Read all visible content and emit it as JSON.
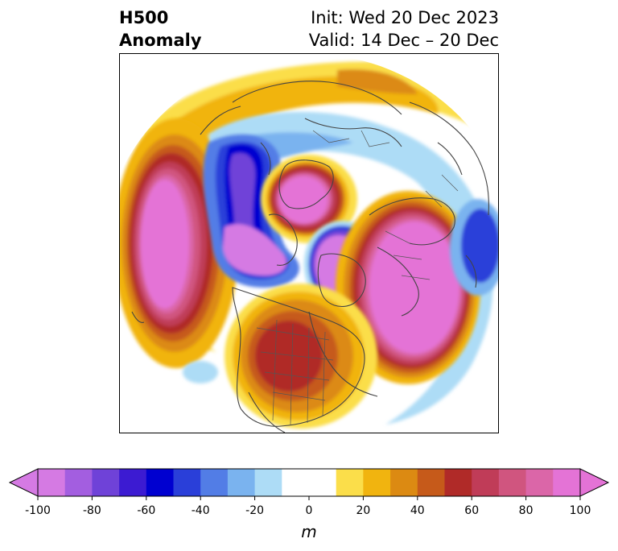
{
  "title": {
    "left_line1": "H500",
    "left_line2": "Anomaly",
    "right_line1": "Init: Wed 20 Dec 2023",
    "right_line2": "Valid: 14 Dec – 20 Dec"
  },
  "map": {
    "projection": "north-polar-stereographic",
    "field": "500 hPa geopotential height anomaly",
    "features": [
      {
        "name": "positive-anomaly-north-pacific",
        "sign": "positive",
        "peak_m": 100
      },
      {
        "name": "positive-anomaly-north-atlantic-europe",
        "sign": "positive",
        "peak_m": 100
      },
      {
        "name": "positive-anomaly-arctic-siberia",
        "sign": "positive",
        "peak_m": 100
      },
      {
        "name": "positive-anomaly-central-north-america",
        "sign": "positive",
        "peak_m": 60
      },
      {
        "name": "negative-anomaly-east-asia",
        "sign": "negative",
        "peak_m": -70
      },
      {
        "name": "negative-anomaly-greenland-canadian-arctic",
        "sign": "negative",
        "peak_m": -100
      },
      {
        "name": "negative-anomaly-western-pacific",
        "sign": "negative",
        "peak_m": -100
      },
      {
        "name": "negative-anomaly-south-of-arctic-pole",
        "sign": "negative",
        "peak_m": -40
      }
    ]
  },
  "colorbar": {
    "units": "m",
    "tick_labels": [
      "-100",
      "-80",
      "-60",
      "-40",
      "-20",
      "0",
      "20",
      "40",
      "60",
      "80",
      "100"
    ],
    "bins": [
      {
        "color": "#d57ae3"
      },
      {
        "color": "#a35ee0"
      },
      {
        "color": "#6f42d8"
      },
      {
        "color": "#3c1bd2"
      },
      {
        "color": "#0000d0"
      },
      {
        "color": "#2a3fd9"
      },
      {
        "color": "#527de6"
      },
      {
        "color": "#7ab3ef"
      },
      {
        "color": "#addcf6"
      },
      {
        "color": "#ffffff"
      },
      {
        "color": "#ffffff"
      },
      {
        "color": "#fbde4a"
      },
      {
        "color": "#f1b40f"
      },
      {
        "color": "#dc8a12"
      },
      {
        "color": "#c65a1a"
      },
      {
        "color": "#b02a28"
      },
      {
        "color": "#c03c58"
      },
      {
        "color": "#d0557f"
      },
      {
        "color": "#db66a8"
      },
      {
        "color": "#e473d6"
      }
    ],
    "extend_low_color": "#d57ae3",
    "extend_high_color": "#e473d6"
  }
}
